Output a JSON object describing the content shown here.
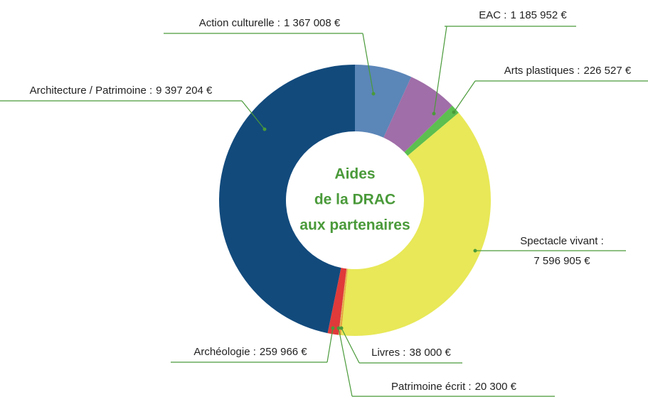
{
  "chart_data": {
    "type": "donut",
    "categories": [
      "Action culturelle :",
      "EAC :",
      "Arts plastiques :",
      "Spectacle vivant :",
      "Livres :",
      "Patrimoine écrit :",
      "Archéologie :",
      "Architecture / Patrimoine :"
    ],
    "values": [
      1367008,
      1185952,
      226527,
      7596905,
      38000,
      20300,
      259966,
      9397204
    ],
    "value_labels": [
      "1 367 008 €",
      "1 185 952 €",
      "226 527 €",
      "7 596 905 €",
      "38 000 €",
      "20 300 €",
      "259 966 €",
      "9 397 204 €"
    ],
    "colors": [
      "#5b86b8",
      "#a06ea8",
      "#5cbf4f",
      "#e8e858",
      "#e8a23a",
      "#d9c25a",
      "#e03a3a",
      "#124a7c"
    ],
    "center_text": [
      "Aides",
      "de la DRAC",
      "aux partenaires"
    ]
  }
}
